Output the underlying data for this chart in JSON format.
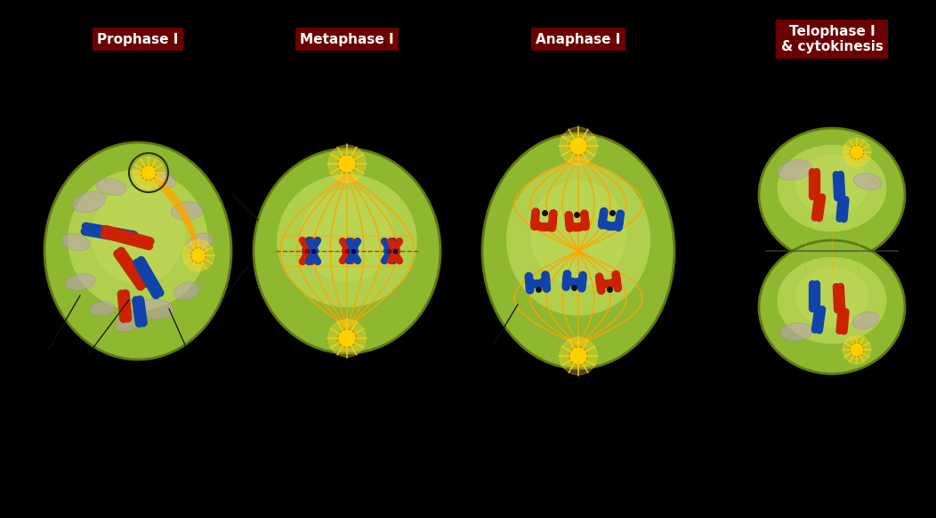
{
  "background_color": "#000000",
  "stages": [
    "Prophase I",
    "Metaphase I",
    "Anaphase I",
    "Telophase I\n& cytokinesis"
  ],
  "label_bg_color": "#6B0000",
  "label_text_color": "#FFFFFF",
  "cell_color_outer": "#8DB830",
  "cell_color_inner": "#C8E060",
  "cell_edge_color": "#607810",
  "spindle_color": "#FFA500",
  "chr_red": "#CC2200",
  "chr_blue": "#1144AA",
  "centriole_color": "#FFD700",
  "organelle_color": "#C0A0C0",
  "organelle_edge": "#A080A0",
  "annotation_line_color": "#202020"
}
